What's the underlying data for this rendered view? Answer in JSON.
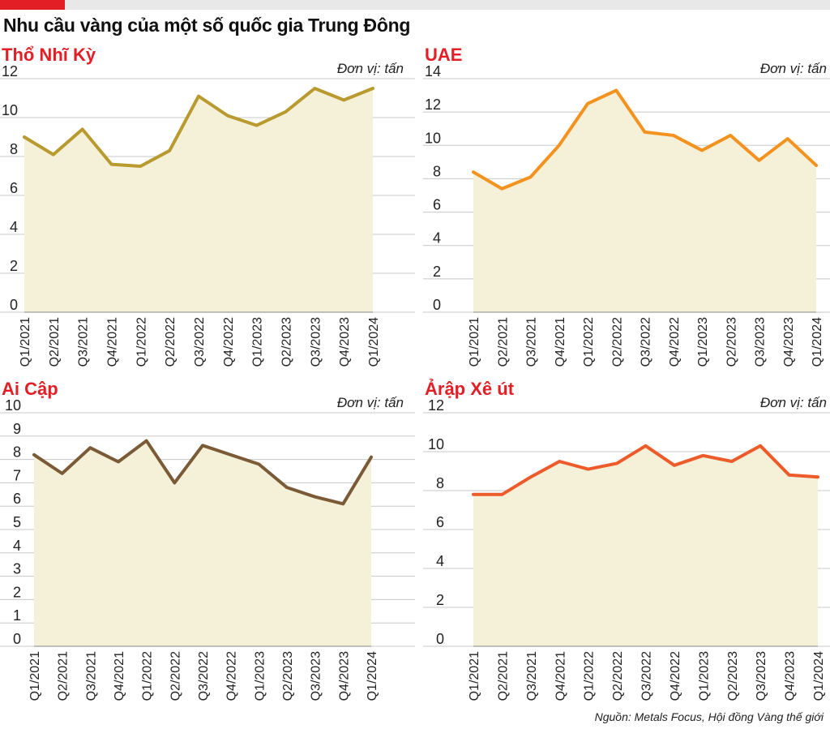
{
  "title": "Nhu cầu vàng của một số quốc gia Trung Đông",
  "source": "Nguồn: Metals Focus, Hội đồng Vàng thế giới",
  "accent_color": "#e31e24",
  "fill_color": "#f5f0d8",
  "chart_data": [
    {
      "type": "area",
      "title": "Thổ Nhĩ Kỳ",
      "unit_label": "Đơn vị: tấn",
      "color": "#b89a2e",
      "categories": [
        "Q1/2021",
        "Q2/2021",
        "Q3/2021",
        "Q4/2021",
        "Q1/2022",
        "Q2/2022",
        "Q3/2022",
        "Q4/2022",
        "Q1/2023",
        "Q2/2023",
        "Q3/2023",
        "Q4/2023",
        "Q1/2024"
      ],
      "values": [
        9.0,
        8.1,
        9.4,
        7.6,
        7.5,
        8.3,
        11.1,
        10.1,
        9.6,
        10.3,
        11.5,
        10.9,
        11.5
      ],
      "ylim": [
        0,
        12
      ],
      "yticks": [
        0,
        2,
        4,
        6,
        8,
        10,
        12
      ],
      "grid": true
    },
    {
      "type": "area",
      "title": "UAE",
      "unit_label": "Đơn vị: tấn",
      "color": "#f4921f",
      "categories": [
        "Q1/2021",
        "Q2/2021",
        "Q3/2021",
        "Q4/2021",
        "Q1/2022",
        "Q2/2022",
        "Q3/2022",
        "Q4/2022",
        "Q1/2023",
        "Q2/2023",
        "Q3/2023",
        "Q4/2023",
        "Q1/2024"
      ],
      "values": [
        8.4,
        7.4,
        8.1,
        10.0,
        12.5,
        13.3,
        10.8,
        10.6,
        9.7,
        10.6,
        9.1,
        10.4,
        8.8
      ],
      "ylim": [
        0,
        14
      ],
      "yticks": [
        0,
        2,
        4,
        6,
        8,
        10,
        12,
        14
      ],
      "grid": true
    },
    {
      "type": "area",
      "title": "Ai Cập",
      "unit_label": "Đơn vị: tấn",
      "color": "#7a5a37",
      "categories": [
        "Q1/2021",
        "Q2/2021",
        "Q3/2021",
        "Q4/2021",
        "Q1/2022",
        "Q2/2022",
        "Q3/2022",
        "Q4/2022",
        "Q1/2023",
        "Q2/2023",
        "Q3/2023",
        "Q4/2023",
        "Q1/2024"
      ],
      "values": [
        8.2,
        7.4,
        8.5,
        7.9,
        8.8,
        7.0,
        8.6,
        8.2,
        7.8,
        6.8,
        6.4,
        6.1,
        8.1
      ],
      "ylim": [
        0,
        10
      ],
      "yticks": [
        0,
        1,
        2,
        3,
        4,
        5,
        6,
        7,
        8,
        9,
        10
      ],
      "grid": true
    },
    {
      "type": "area",
      "title": "Ảrập Xê út",
      "unit_label": "Đơn vị: tấn",
      "color": "#ee5b2a",
      "categories": [
        "Q1/2021",
        "Q2/2021",
        "Q3/2021",
        "Q4/2021",
        "Q1/2022",
        "Q2/2022",
        "Q3/2022",
        "Q4/2022",
        "Q1/2023",
        "Q2/2023",
        "Q3/2023",
        "Q4/2023",
        "Q1/2024"
      ],
      "values": [
        7.8,
        7.8,
        8.7,
        9.5,
        9.1,
        9.4,
        10.3,
        9.3,
        9.8,
        9.5,
        10.3,
        8.8,
        8.7
      ],
      "ylim": [
        0,
        12
      ],
      "yticks": [
        0,
        2,
        4,
        6,
        8,
        10,
        12
      ],
      "grid": true
    }
  ]
}
